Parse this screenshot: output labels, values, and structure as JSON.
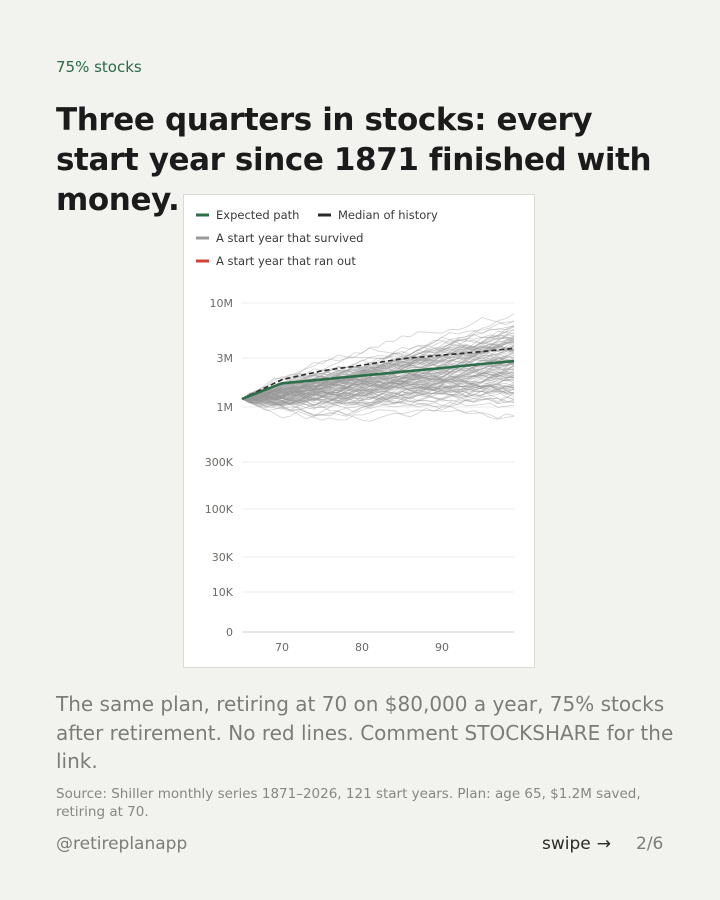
{
  "kicker": "75% stocks",
  "headline": "Three quarters in stocks: every start year since 1871 finished with money.",
  "body": "The same plan, retiring at 70 on $80,000 a year, 75% stocks after retirement. No red lines. Comment STOCKSHARE for the link.",
  "source": "Source: Shiller monthly series 1871–2026, 121 start years. Plan: age 65, $1.2M saved, retiring at 70.",
  "footer": {
    "handle": "@retireplanapp",
    "swipe_label": "swipe",
    "swipe_icon": "arrow-right-icon",
    "page": "2/6"
  },
  "colors": {
    "expected": "#2d6e4b",
    "median": "#2a2a2a",
    "survived": "#9a9a98",
    "ran_out": "#d2413a",
    "accent": "#2b6a47"
  },
  "chart_data": {
    "type": "line",
    "title": "",
    "xlabel": "",
    "ylabel": "",
    "x_scale": "age",
    "y_scale": "log",
    "xlim": [
      65,
      99
    ],
    "x_ticks": [
      70,
      80,
      90
    ],
    "x_tick_labels": [
      "70",
      "80",
      "90"
    ],
    "y_ticks": [
      0,
      10000,
      30000,
      100000,
      300000,
      1000000,
      3000000,
      10000000
    ],
    "y_tick_labels": [
      "0",
      "10K",
      "30K",
      "100K",
      "300K",
      "1M",
      "3M",
      "10M"
    ],
    "grid": true,
    "legend": [
      {
        "label": "Expected path",
        "style": "solid",
        "color": "#2d6e4b"
      },
      {
        "label": "Median of history",
        "style": "dashed",
        "color": "#2a2a2a"
      },
      {
        "label": "A start year that survived",
        "style": "solid",
        "color": "#9a9a98"
      },
      {
        "label": "A start year that ran out",
        "style": "solid",
        "color": "#d2413a"
      }
    ],
    "legend_position": "top-left",
    "start_years_count": 121,
    "ran_out_count": 0,
    "series": [
      {
        "name": "Expected path",
        "x": [
          65,
          70,
          75,
          80,
          85,
          90,
          95,
          99
        ],
        "values": [
          1200000,
          1700000,
          1850000,
          2020000,
          2200000,
          2400000,
          2620000,
          2800000
        ]
      },
      {
        "name": "Median of history",
        "x": [
          65,
          70,
          75,
          80,
          85,
          90,
          95,
          99
        ],
        "values": [
          1200000,
          1850000,
          2250000,
          2550000,
          2950000,
          3200000,
          3450000,
          3700000
        ]
      }
    ]
  }
}
